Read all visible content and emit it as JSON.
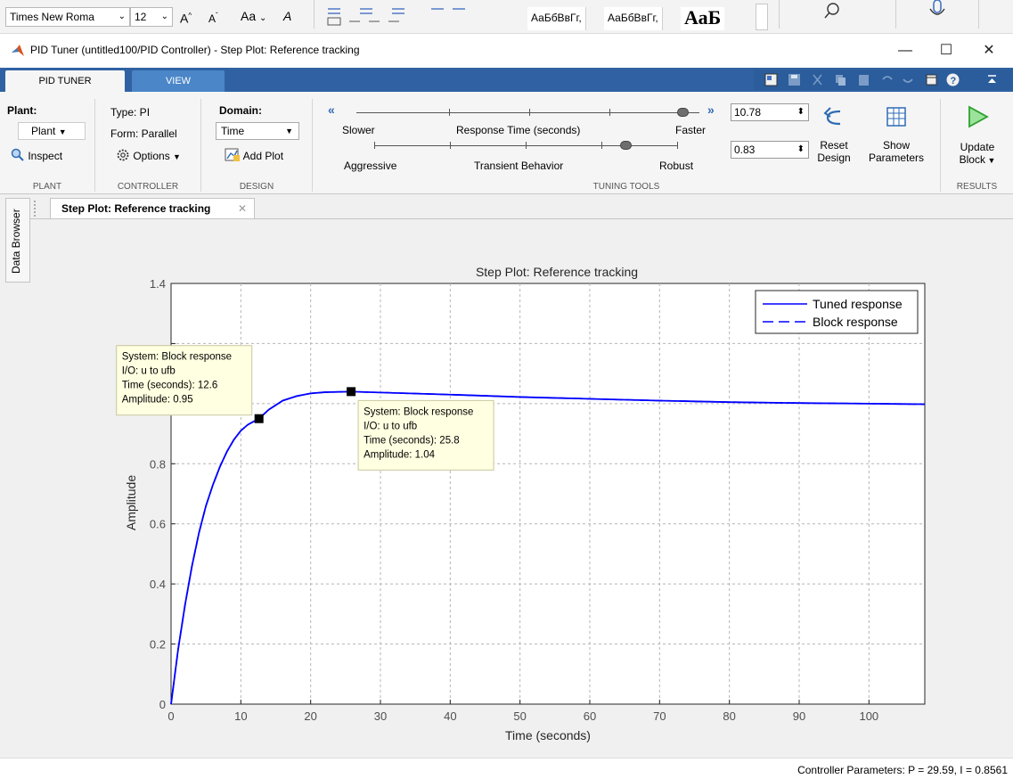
{
  "word_strip": {
    "font_name": "Times New Roma",
    "font_size": "12",
    "grow_label": "A",
    "shrink_label": "A",
    "case_label": "Aa",
    "styles": [
      "АаБбВвГг,",
      "АаБбВвГг,",
      "АаБ"
    ]
  },
  "window": {
    "title": "PID Tuner (untitled100/PID Controller) - Step Plot: Reference tracking",
    "minimize": "—",
    "maximize": "☐",
    "close": "✕"
  },
  "tabs": [
    {
      "label": "PID TUNER"
    },
    {
      "label": "VIEW"
    }
  ],
  "ribbon": {
    "plant": {
      "heading": "Plant:",
      "value": "Plant",
      "inspect_label": "Inspect",
      "group": "PLANT"
    },
    "controller": {
      "type": "Type: PI",
      "form": "Form: Parallel",
      "options_label": "Options",
      "group": "CONTROLLER"
    },
    "design": {
      "heading": "Domain:",
      "domain_value": "Time",
      "add_plot_label": "Add Plot",
      "group": "DESIGN"
    },
    "tuning": {
      "slower": "Slower",
      "response_time": "Response Time (seconds)",
      "faster": "Faster",
      "aggressive": "Aggressive",
      "transient": "Transient Behavior",
      "robust": "Robust",
      "response_time_value": "10.78",
      "transient_value": "0.83",
      "response_time_level": 0.95,
      "transient_level": 0.83,
      "reset_label_1": "Reset",
      "reset_label_2": "Design",
      "show_label_1": "Show",
      "show_label_2": "Parameters",
      "group": "TUNING TOOLS"
    },
    "results": {
      "update_label_1": "Update",
      "update_label_2": "Block",
      "group": "RESULTS"
    }
  },
  "document": {
    "data_browser": "Data Browser",
    "tab_label": "Step Plot: Reference tracking",
    "tab_close": "✕"
  },
  "chart_data": {
    "type": "line",
    "title": "Step Plot: Reference tracking",
    "xlabel": "Time (seconds)",
    "ylabel": "Amplitude",
    "xlim": [
      0,
      108
    ],
    "ylim": [
      0,
      1.4
    ],
    "xticks": [
      0,
      10,
      20,
      30,
      40,
      50,
      60,
      70,
      80,
      90,
      100
    ],
    "yticks": [
      0,
      0.2,
      0.4,
      0.6,
      0.8,
      1,
      1.2,
      1.4
    ],
    "ytick_labels": [
      "0",
      "0.2",
      "0.4",
      "0.6",
      "0.8",
      "",
      "",
      "1.4"
    ],
    "grid": true,
    "legend_position": "top-right",
    "series": [
      {
        "name": "Tuned response",
        "style": "solid",
        "color": "#0000ff",
        "x": [
          0,
          1,
          2,
          3,
          4,
          5,
          6,
          7,
          8,
          9,
          10,
          11,
          12.6,
          14,
          16,
          18,
          20,
          22,
          25.8,
          30,
          40,
          50,
          60,
          70,
          80,
          90,
          100,
          108
        ],
        "y": [
          0,
          0.18,
          0.33,
          0.46,
          0.57,
          0.66,
          0.73,
          0.79,
          0.84,
          0.88,
          0.91,
          0.93,
          0.95,
          0.98,
          1.01,
          1.025,
          1.034,
          1.038,
          1.04,
          1.037,
          1.03,
          1.022,
          1.016,
          1.01,
          1.005,
          1.002,
          1.0,
          0.998
        ]
      },
      {
        "name": "Block response",
        "style": "dashed",
        "color": "#0000ff",
        "x": [
          0,
          1,
          2,
          3,
          4,
          5,
          6,
          7,
          8,
          9,
          10,
          11,
          12.6,
          14,
          16,
          18,
          20,
          22,
          25.8,
          30,
          40,
          50,
          60,
          70,
          80,
          90,
          100,
          108
        ],
        "y": [
          0,
          0.18,
          0.33,
          0.46,
          0.57,
          0.66,
          0.73,
          0.79,
          0.84,
          0.88,
          0.91,
          0.93,
          0.95,
          0.98,
          1.01,
          1.025,
          1.034,
          1.038,
          1.04,
          1.037,
          1.03,
          1.022,
          1.016,
          1.01,
          1.005,
          1.002,
          1.0,
          0.998
        ]
      }
    ],
    "datatips": [
      {
        "x": 12.6,
        "y": 0.95,
        "lines": [
          "System: Block response",
          "I/O: u to ufb",
          "Time (seconds): 12.6",
          "Amplitude: 0.95"
        ]
      },
      {
        "x": 25.8,
        "y": 1.04,
        "lines": [
          "System: Block response",
          "I/O: u to ufb",
          "Time (seconds): 25.8",
          "Amplitude: 1.04"
        ]
      }
    ]
  },
  "status": {
    "text": "Controller Parameters: P = 29.59, I = 0.8561"
  }
}
